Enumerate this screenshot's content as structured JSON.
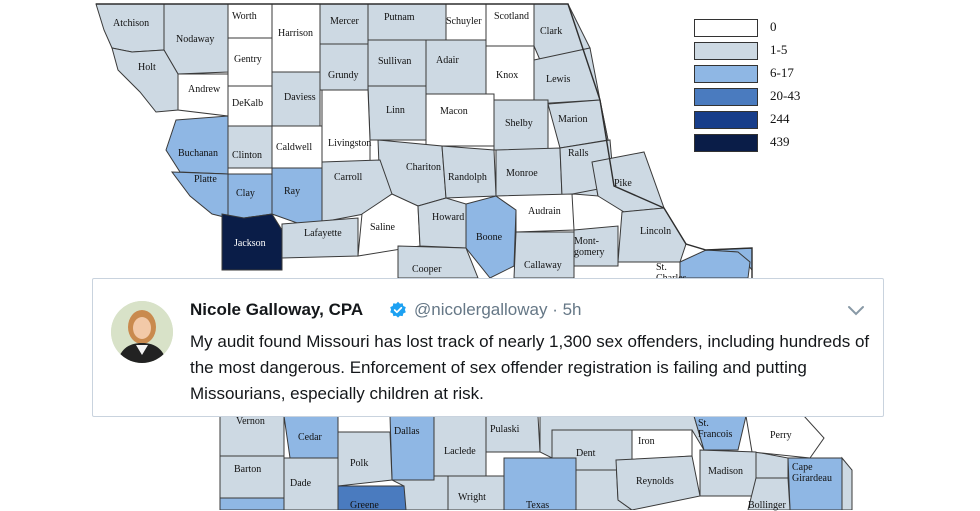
{
  "legend": {
    "items": [
      {
        "label": "0",
        "color": "#ffffff"
      },
      {
        "label": "1-5",
        "color": "#cdd9e3"
      },
      {
        "label": "6-17",
        "color": "#8fb7e4"
      },
      {
        "label": "20-43",
        "color": "#4a7bbf"
      },
      {
        "label": "244",
        "color": "#173d8a"
      },
      {
        "label": "439",
        "color": "#0a1d48"
      }
    ]
  },
  "counties": [
    {
      "name": "Atchison",
      "level": 1
    },
    {
      "name": "Nodaway",
      "level": 1
    },
    {
      "name": "Worth",
      "level": 0
    },
    {
      "name": "Harrison",
      "level": 0
    },
    {
      "name": "Mercer",
      "level": 1
    },
    {
      "name": "Putnam",
      "level": 1
    },
    {
      "name": "Schuyler",
      "level": 0
    },
    {
      "name": "Scotland",
      "level": 0
    },
    {
      "name": "Clark",
      "level": 1
    },
    {
      "name": "Holt",
      "level": 1
    },
    {
      "name": "Gentry",
      "level": 0
    },
    {
      "name": "Grundy",
      "level": 1
    },
    {
      "name": "Sullivan",
      "level": 1
    },
    {
      "name": "Adair",
      "level": 1
    },
    {
      "name": "Knox",
      "level": 0
    },
    {
      "name": "Lewis",
      "level": 1
    },
    {
      "name": "Andrew",
      "level": 0
    },
    {
      "name": "DeKalb",
      "level": 0
    },
    {
      "name": "Daviess",
      "level": 1
    },
    {
      "name": "Linn",
      "level": 1
    },
    {
      "name": "Macon",
      "level": 0
    },
    {
      "name": "Shelby",
      "level": 1
    },
    {
      "name": "Marion",
      "level": 1
    },
    {
      "name": "Buchanan",
      "level": 2
    },
    {
      "name": "Clinton",
      "level": 1
    },
    {
      "name": "Caldwell",
      "level": 0
    },
    {
      "name": "Livingston",
      "level": 0
    },
    {
      "name": "Chariton",
      "level": 1
    },
    {
      "name": "Randolph",
      "level": 1
    },
    {
      "name": "Monroe",
      "level": 1
    },
    {
      "name": "Ralls",
      "level": 1
    },
    {
      "name": "Platte",
      "level": 2
    },
    {
      "name": "Clay",
      "level": 2
    },
    {
      "name": "Ray",
      "level": 2
    },
    {
      "name": "Carroll",
      "level": 1
    },
    {
      "name": "Pike",
      "level": 1
    },
    {
      "name": "Saline",
      "level": 0
    },
    {
      "name": "Howard",
      "level": 1
    },
    {
      "name": "Boone",
      "level": 2
    },
    {
      "name": "Audrain",
      "level": 0
    },
    {
      "name": "Jackson",
      "level": 5
    },
    {
      "name": "Lafayette",
      "level": 1
    },
    {
      "name": "Lincoln",
      "level": 1
    },
    {
      "name": "Mont-gomery",
      "level": 1
    },
    {
      "name": "Callaway",
      "level": 1
    },
    {
      "name": "Cooper",
      "level": 1
    },
    {
      "name": "St. Charles",
      "level": 2
    },
    {
      "name": "Vernon",
      "level": 1
    },
    {
      "name": "Cedar",
      "level": 2
    },
    {
      "name": "Dallas",
      "level": 2
    },
    {
      "name": "Pulaski",
      "level": 1
    },
    {
      "name": "St. Francois",
      "level": 2
    },
    {
      "name": "Perry",
      "level": 0
    },
    {
      "name": "Laclede",
      "level": 1
    },
    {
      "name": "Iron",
      "level": 0
    },
    {
      "name": "Dent",
      "level": 1
    },
    {
      "name": "Polk",
      "level": 1
    },
    {
      "name": "Barton",
      "level": 1
    },
    {
      "name": "Madison",
      "level": 1
    },
    {
      "name": "Cape Girardeau",
      "level": 2
    },
    {
      "name": "Dade",
      "level": 1
    },
    {
      "name": "Reynolds",
      "level": 1
    },
    {
      "name": "Wright",
      "level": 1
    },
    {
      "name": "Texas",
      "level": 2
    },
    {
      "name": "Bollinger",
      "level": 1
    },
    {
      "name": "Greene",
      "level": 3
    }
  ],
  "tweet": {
    "name": "Nicole Galloway, CPA",
    "handle": "@nicolergalloway · 5h",
    "text": "My audit found Missouri has lost track of nearly 1,300 sex offenders, including hundreds of the most dangerous. Enforcement of sex offender registration is failing and putting Missourians, especially children at risk.",
    "verified_color": "#1da1f2",
    "icons": [
      "avatar",
      "verified-badge-icon",
      "chevron-down-icon"
    ]
  }
}
